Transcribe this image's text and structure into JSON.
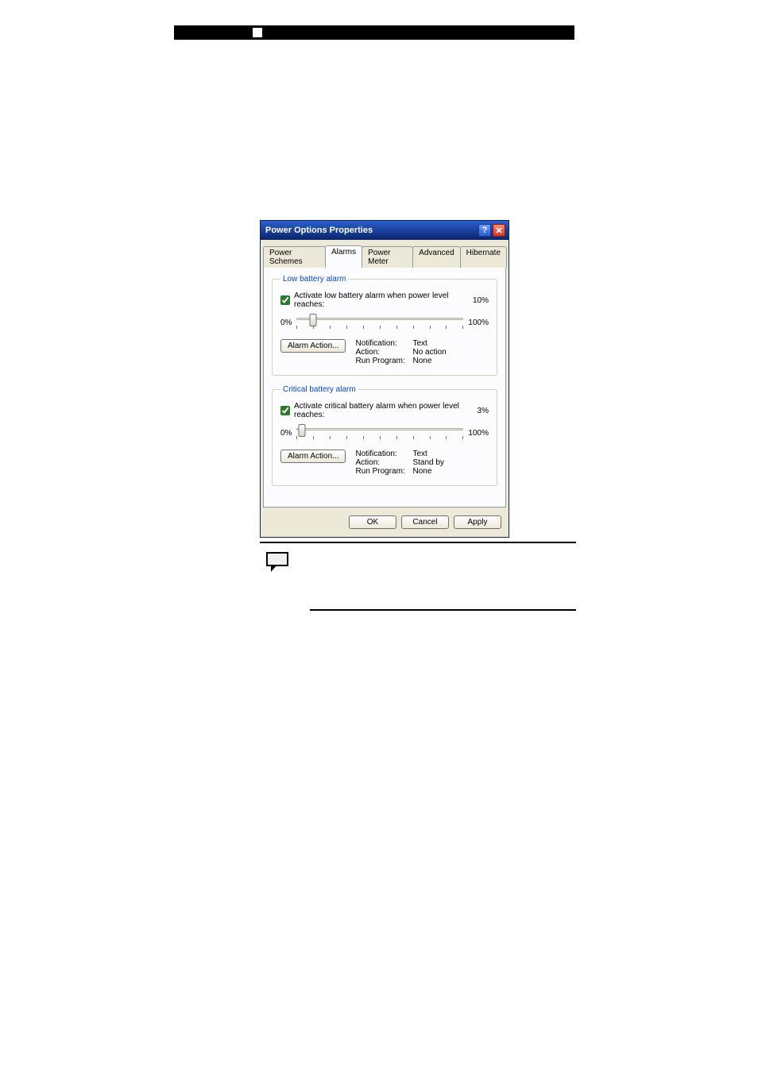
{
  "bar": {
    "bg": "#000000",
    "square": "#ffffff"
  },
  "dialog": {
    "title": "Power Options Properties",
    "tabs": {
      "t0": "Power Schemes",
      "t1": "Alarms",
      "t2": "Power Meter",
      "t3": "Advanced",
      "t4": "Hibernate"
    },
    "low": {
      "legend": "Low battery alarm",
      "check_label": "Activate low battery alarm when power level reaches:",
      "pct": "10%",
      "min": "0%",
      "max": "100%",
      "slider_pos_pct": 10,
      "btn": "Alarm Action...",
      "s_notif_l": "Notification:",
      "s_notif_v": "Text",
      "s_action_l": "Action:",
      "s_action_v": "No action",
      "s_prog_l": "Run Program:",
      "s_prog_v": "None"
    },
    "crit": {
      "legend": "Critical battery alarm",
      "check_label": "Activate critical battery alarm when power level reaches:",
      "pct": "3%",
      "min": "0%",
      "max": "100%",
      "slider_pos_pct": 3,
      "btn": "Alarm Action...",
      "s_notif_l": "Notification:",
      "s_notif_v": "Text",
      "s_action_l": "Action:",
      "s_action_v": "Stand by",
      "s_prog_l": "Run Program:",
      "s_prog_v": "None"
    },
    "footer": {
      "ok": "OK",
      "cancel": "Cancel",
      "apply": "Apply"
    }
  },
  "colors": {
    "titlebar_grad_top": "#2b5fd0",
    "titlebar_grad_bottom": "#0a246a",
    "body_bg": "#ece9d8",
    "panel_bg": "#fcfcfe",
    "legend_color": "#0046d5"
  }
}
